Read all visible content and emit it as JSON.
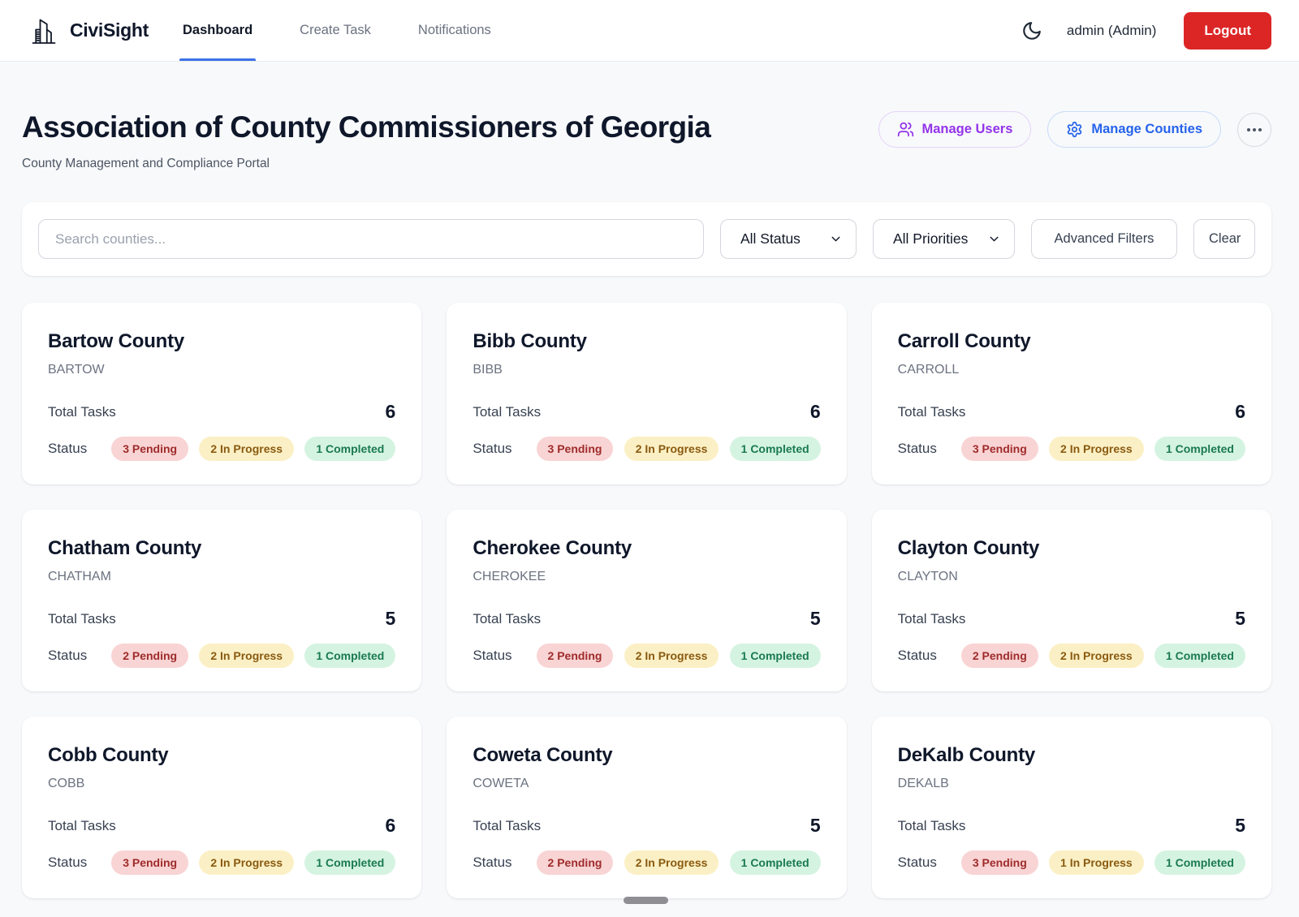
{
  "header": {
    "brand": "CiviSight",
    "nav": [
      {
        "label": "Dashboard",
        "active": true
      },
      {
        "label": "Create Task",
        "active": false
      },
      {
        "label": "Notifications",
        "active": false
      }
    ],
    "user_label": "admin (Admin)",
    "logout_label": "Logout"
  },
  "page": {
    "title": "Association of County Commissioners of Georgia",
    "subtitle": "County Management and Compliance Portal"
  },
  "actions": {
    "manage_users_label": "Manage Users",
    "manage_counties_label": "Manage Counties"
  },
  "filters": {
    "search_placeholder": "Search counties...",
    "status_selected": "All Status",
    "priorities_selected": "All Priorities",
    "advanced_filters_label": "Advanced Filters",
    "clear_label": "Clear"
  },
  "card_labels": {
    "total_tasks": "Total Tasks",
    "status": "Status"
  },
  "counties": [
    {
      "name": "Bartow County",
      "code": "BARTOW",
      "total_tasks": 6,
      "badges": [
        {
          "label": "3 Pending",
          "kind": "pending"
        },
        {
          "label": "2 In Progress",
          "kind": "in_progress"
        },
        {
          "label": "1 Completed",
          "kind": "completed"
        }
      ]
    },
    {
      "name": "Bibb County",
      "code": "BIBB",
      "total_tasks": 6,
      "badges": [
        {
          "label": "3 Pending",
          "kind": "pending"
        },
        {
          "label": "2 In Progress",
          "kind": "in_progress"
        },
        {
          "label": "1 Completed",
          "kind": "completed"
        }
      ]
    },
    {
      "name": "Carroll County",
      "code": "CARROLL",
      "total_tasks": 6,
      "badges": [
        {
          "label": "3 Pending",
          "kind": "pending"
        },
        {
          "label": "2 In Progress",
          "kind": "in_progress"
        },
        {
          "label": "1 Completed",
          "kind": "completed"
        }
      ]
    },
    {
      "name": "Chatham County",
      "code": "CHATHAM",
      "total_tasks": 5,
      "badges": [
        {
          "label": "2 Pending",
          "kind": "pending"
        },
        {
          "label": "2 In Progress",
          "kind": "in_progress"
        },
        {
          "label": "1 Completed",
          "kind": "completed"
        }
      ]
    },
    {
      "name": "Cherokee County",
      "code": "CHEROKEE",
      "total_tasks": 5,
      "badges": [
        {
          "label": "2 Pending",
          "kind": "pending"
        },
        {
          "label": "2 In Progress",
          "kind": "in_progress"
        },
        {
          "label": "1 Completed",
          "kind": "completed"
        }
      ]
    },
    {
      "name": "Clayton County",
      "code": "CLAYTON",
      "total_tasks": 5,
      "badges": [
        {
          "label": "2 Pending",
          "kind": "pending"
        },
        {
          "label": "2 In Progress",
          "kind": "in_progress"
        },
        {
          "label": "1 Completed",
          "kind": "completed"
        }
      ]
    },
    {
      "name": "Cobb County",
      "code": "COBB",
      "total_tasks": 6,
      "badges": [
        {
          "label": "3 Pending",
          "kind": "pending"
        },
        {
          "label": "2 In Progress",
          "kind": "in_progress"
        },
        {
          "label": "1 Completed",
          "kind": "completed"
        }
      ]
    },
    {
      "name": "Coweta County",
      "code": "COWETA",
      "total_tasks": 5,
      "badges": [
        {
          "label": "2 Pending",
          "kind": "pending"
        },
        {
          "label": "2 In Progress",
          "kind": "in_progress"
        },
        {
          "label": "1 Completed",
          "kind": "completed"
        }
      ]
    },
    {
      "name": "DeKalb County",
      "code": "DEKALB",
      "total_tasks": 5,
      "badges": [
        {
          "label": "3 Pending",
          "kind": "pending"
        },
        {
          "label": "1 In Progress",
          "kind": "in_progress"
        },
        {
          "label": "1 Completed",
          "kind": "completed"
        }
      ]
    }
  ],
  "colors": {
    "accent_blue": "#2563eb",
    "accent_purple": "#9333ea",
    "logout_red": "#dc2626",
    "nav_underline": "#3b72e8",
    "badge_pending_bg": "#f9d4d4",
    "badge_pending_text": "#9f2b2b",
    "badge_in_progress_bg": "#fbf0c5",
    "badge_in_progress_text": "#8a5a10",
    "badge_completed_bg": "#d5f3e1",
    "badge_completed_text": "#1a7a4f",
    "page_bg": "#f8f9fb"
  }
}
